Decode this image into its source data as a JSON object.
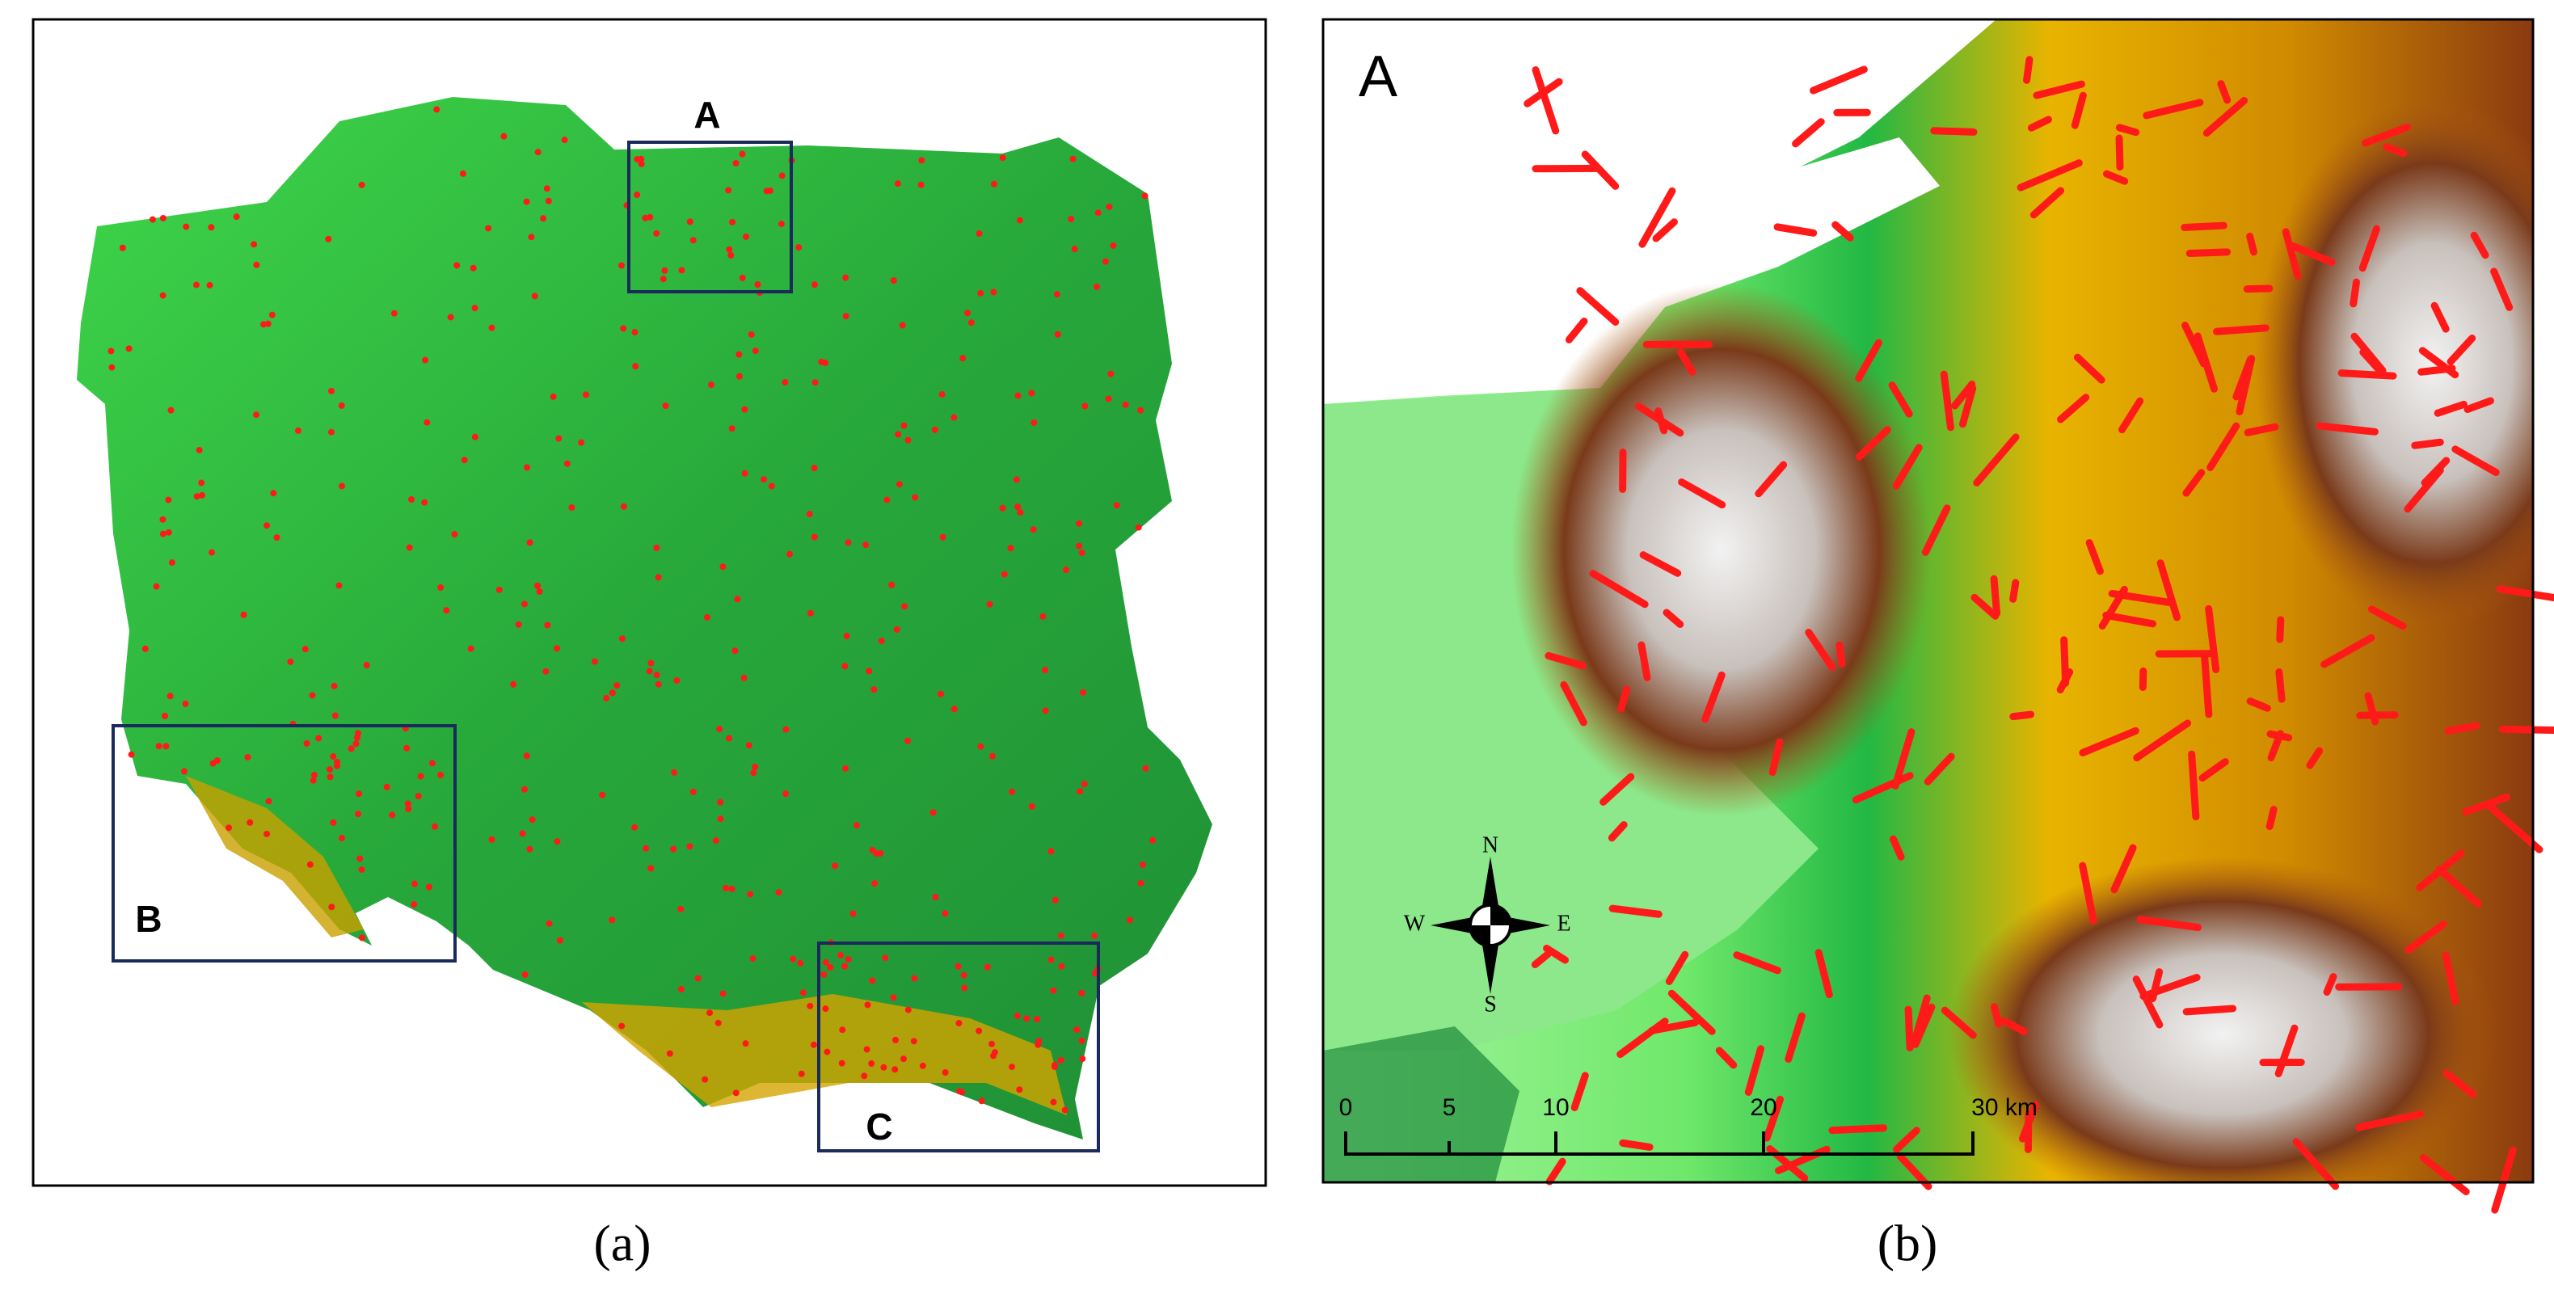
{
  "panel_a": {
    "boxes": [
      {
        "label": "A"
      },
      {
        "label": "B"
      },
      {
        "label": "C"
      }
    ],
    "caption": "(a)"
  },
  "panel_b": {
    "label": "A",
    "compass": {
      "n": "N",
      "s": "S",
      "e": "E",
      "w": "W"
    },
    "scale_labels": [
      "0",
      "5",
      "10",
      "20",
      "30 km"
    ],
    "caption": "(b)"
  }
}
